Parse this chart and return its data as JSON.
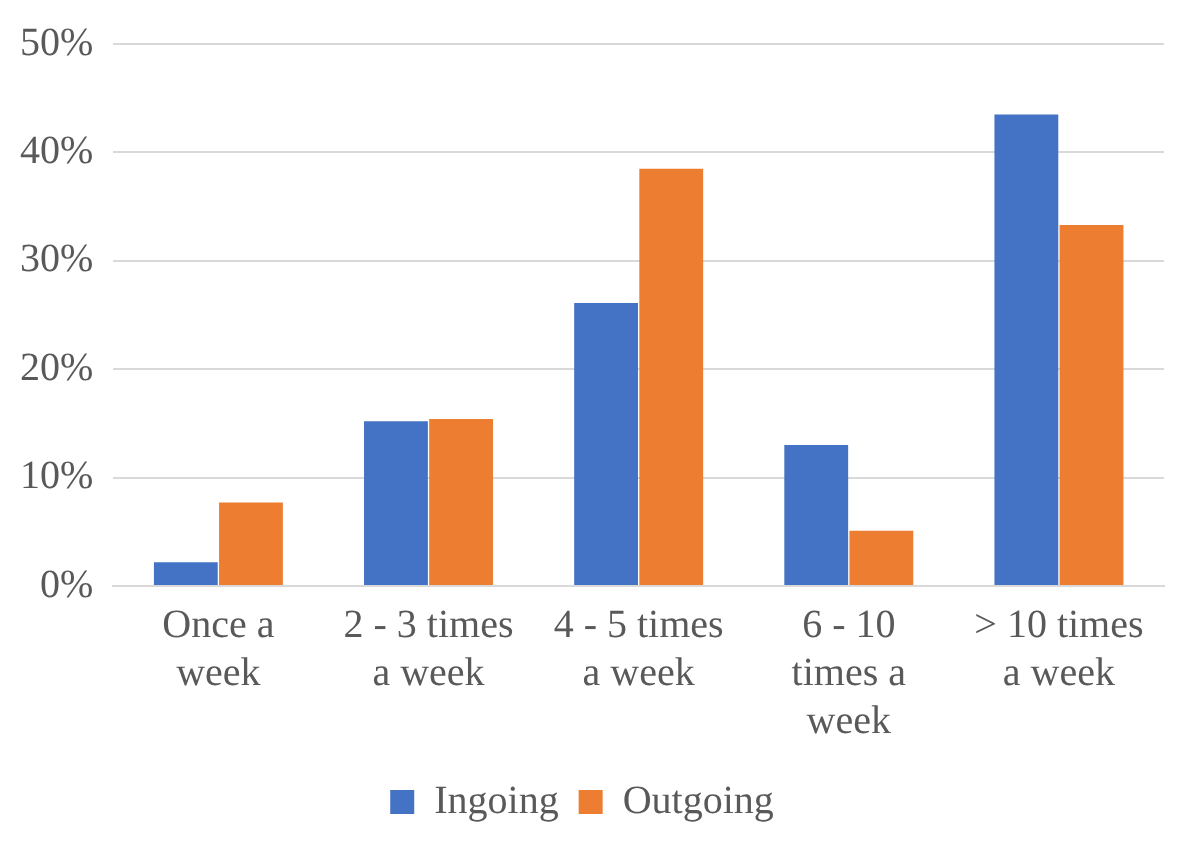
{
  "chart_data": {
    "type": "bar",
    "categories": [
      "Once a week",
      "2 - 3 times a week",
      "4 - 5 times a week",
      "6 - 10 times a week",
      "> 10 times a week"
    ],
    "series": [
      {
        "name": "Ingoing",
        "color": "#4472c4",
        "values": [
          2.2,
          15.2,
          26.1,
          13.0,
          43.5
        ]
      },
      {
        "name": "Outgoing",
        "color": "#ed7d31",
        "values": [
          7.7,
          15.4,
          38.5,
          5.1,
          33.3
        ]
      }
    ],
    "ylim": [
      0,
      50
    ],
    "yticks": [
      {
        "value": 0,
        "label": "0%"
      },
      {
        "value": 10,
        "label": "10%"
      },
      {
        "value": 20,
        "label": "20%"
      },
      {
        "value": 30,
        "label": "30%"
      },
      {
        "value": 40,
        "label": "40%"
      },
      {
        "value": 50,
        "label": "50%"
      }
    ],
    "grid": "y",
    "legend": "bottom"
  }
}
